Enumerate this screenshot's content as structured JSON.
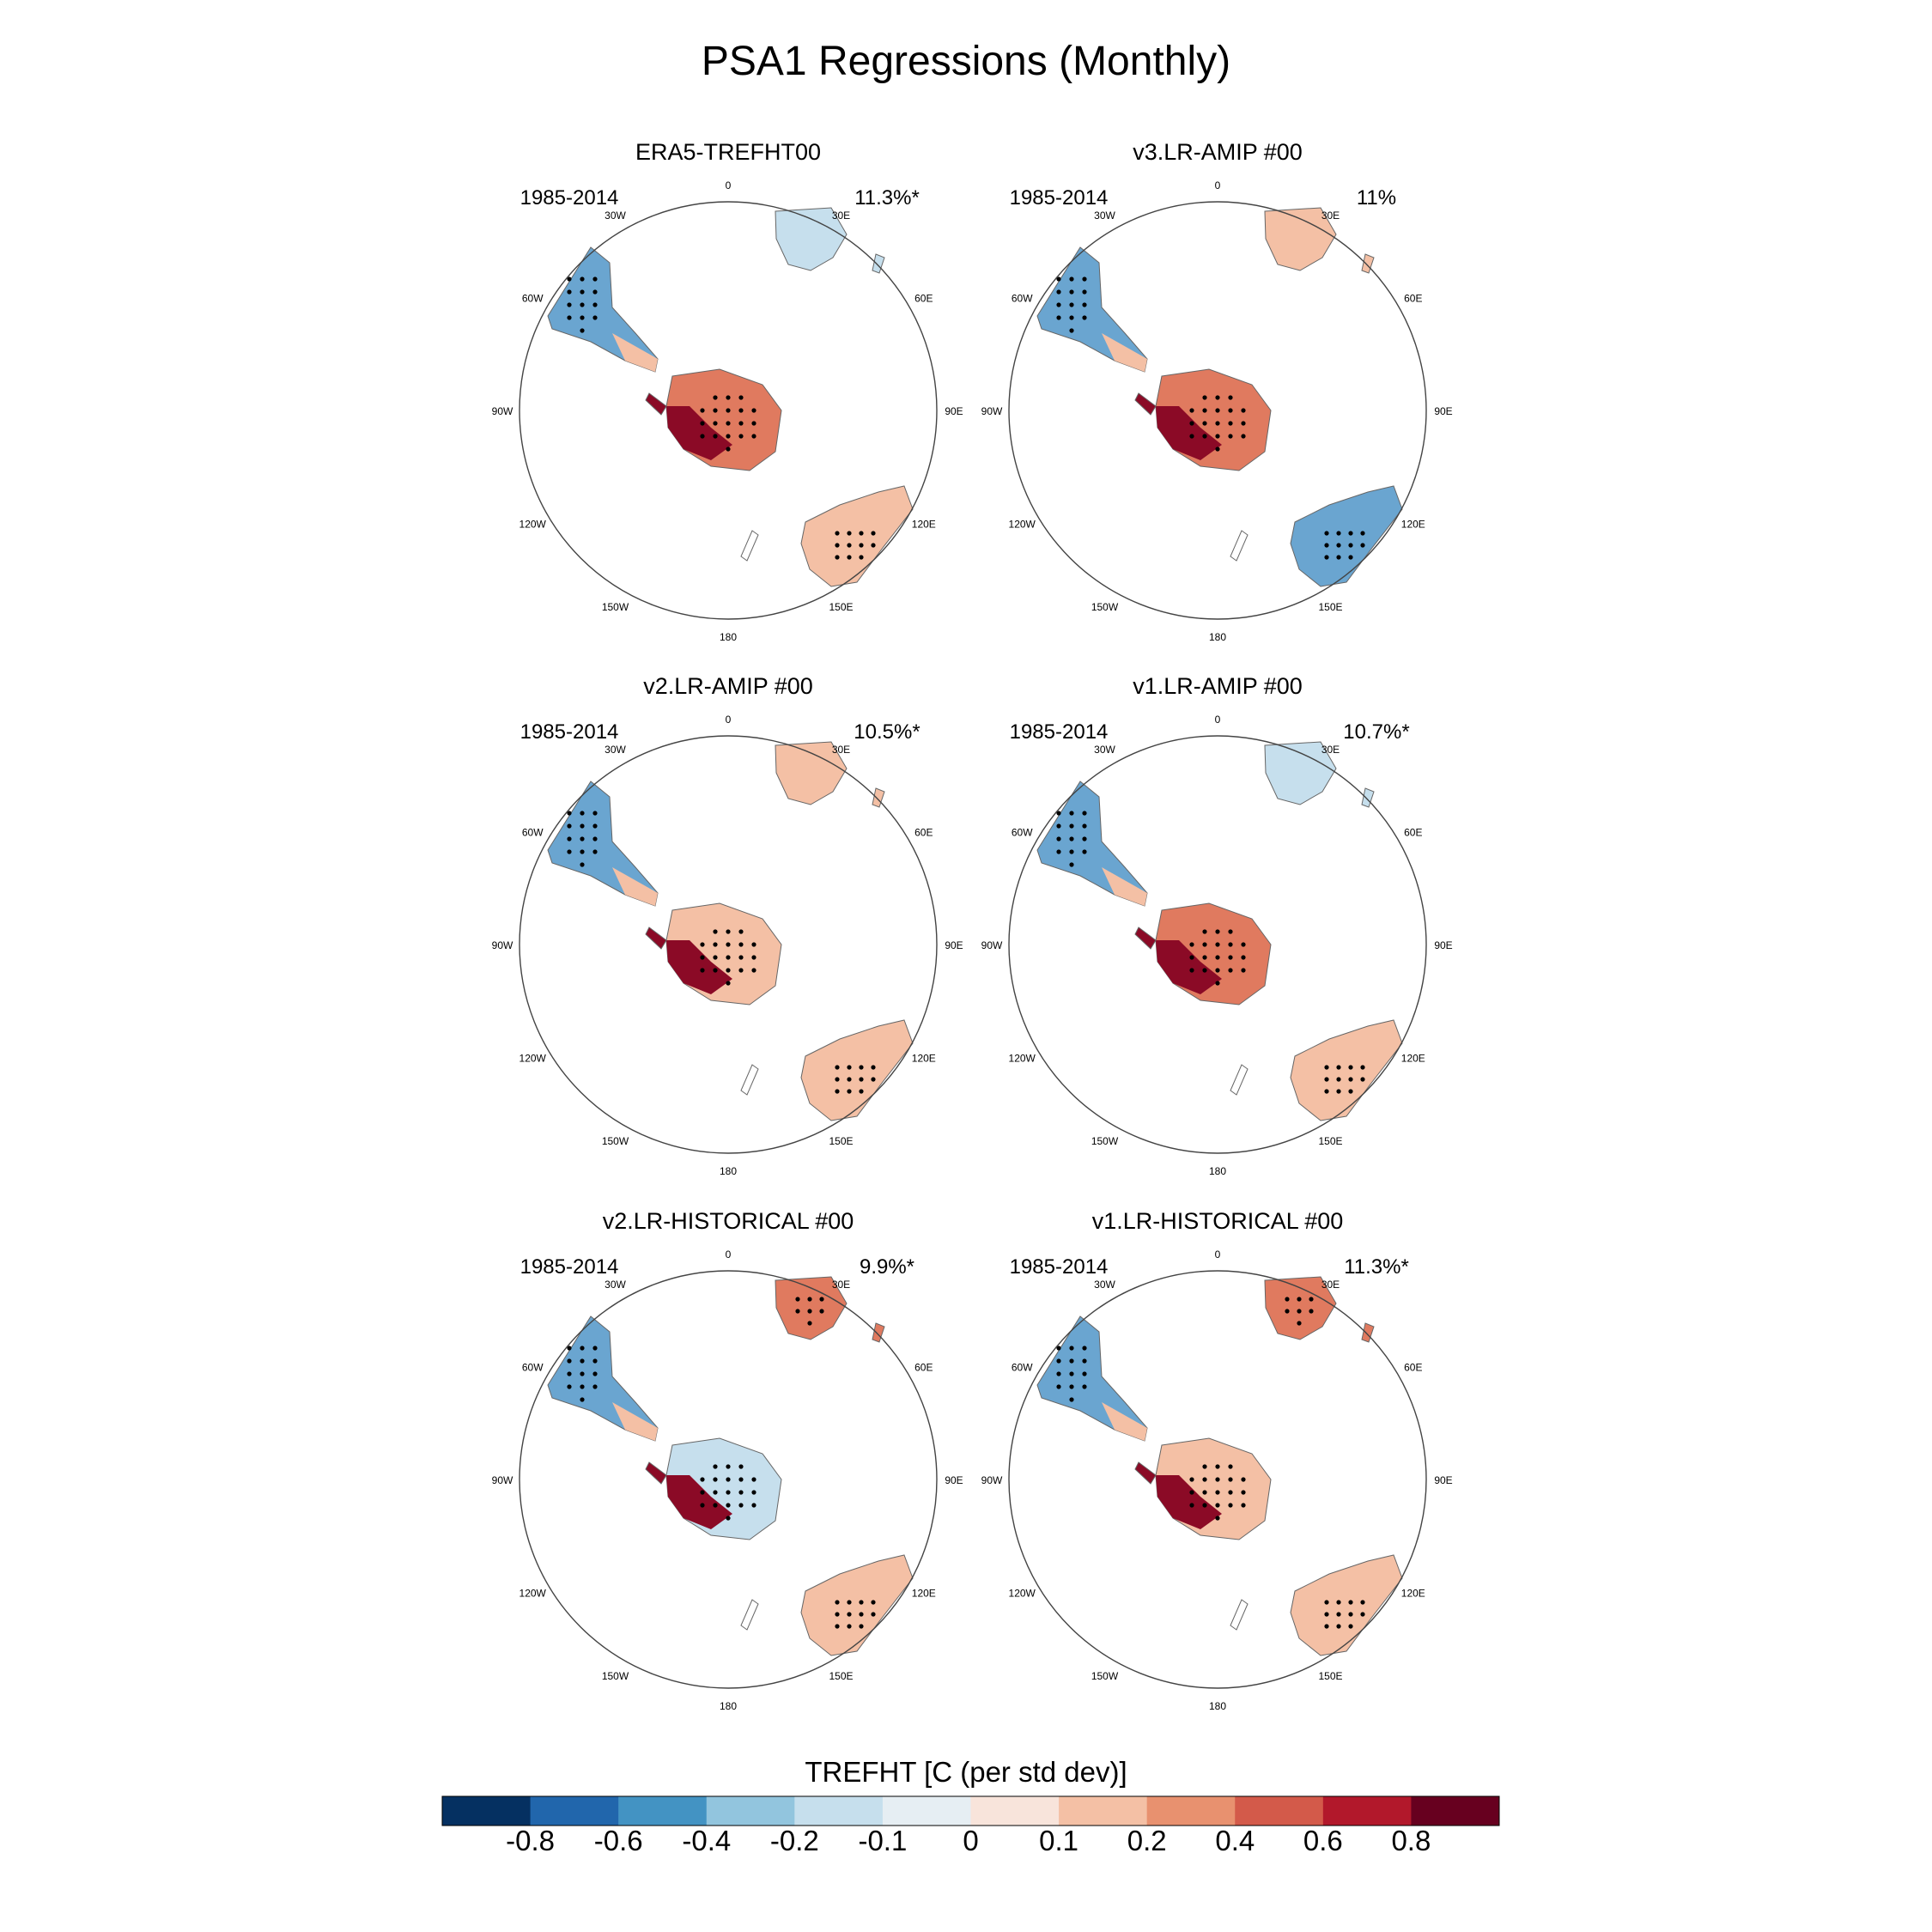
{
  "figure": {
    "title": "PSA1 Regressions (Monthly)",
    "lon_labels": [
      "0",
      "30E",
      "60E",
      "90E",
      "120E",
      "150E",
      "180",
      "150W",
      "120W",
      "90W",
      "60W",
      "30W"
    ]
  },
  "panels": [
    {
      "title": "ERA5-TREFHT00",
      "period": "1985-2014",
      "variance": "11.3%*",
      "anomaly_pattern": {
        "south_america": "blue",
        "antarctic_peninsula_region": "dark-red",
        "antarctica_interior": "red",
        "australia": "light-red",
        "africa": "light-blue"
      }
    },
    {
      "title": "v3.LR-AMIP  #00",
      "period": "1985-2014",
      "variance": "11%",
      "anomaly_pattern": {
        "south_america": "blue",
        "antarctic_peninsula_region": "dark-red",
        "antarctica_interior": "red",
        "australia": "blue",
        "africa": "light-red"
      }
    },
    {
      "title": "v2.LR-AMIP  #00",
      "period": "1985-2014",
      "variance": "10.5%*",
      "anomaly_pattern": {
        "south_america": "blue",
        "antarctic_peninsula_region": "dark-red",
        "antarctica_interior": "light-red",
        "australia": "light-red",
        "africa": "light-red"
      }
    },
    {
      "title": "v1.LR-AMIP  #00",
      "period": "1985-2014",
      "variance": "10.7%*",
      "anomaly_pattern": {
        "south_america": "blue",
        "antarctic_peninsula_region": "dark-red",
        "antarctica_interior": "red",
        "australia": "light-red",
        "africa": "light-blue"
      }
    },
    {
      "title": "v2.LR-HISTORICAL  #00",
      "period": "1985-2014",
      "variance": "9.9%*",
      "anomaly_pattern": {
        "south_america": "blue",
        "antarctic_peninsula_region": "dark-red",
        "antarctica_interior": "light-blue",
        "australia": "light-red",
        "africa": "red"
      }
    },
    {
      "title": "v1.LR-HISTORICAL  #00",
      "period": "1985-2014",
      "variance": "11.3%*",
      "anomaly_pattern": {
        "south_america": "blue",
        "antarctic_peninsula_region": "dark-red",
        "antarctica_interior": "light-red",
        "australia": "light-red",
        "africa": "red"
      }
    }
  ],
  "colorbar": {
    "title": "TREFHT [C (per std dev)]",
    "tick_labels": [
      "-0.8",
      "-0.6",
      "-0.4",
      "-0.2",
      "-0.1",
      "0",
      "0.1",
      "0.2",
      "0.4",
      "0.6",
      "0.8"
    ],
    "colors": [
      "#053061",
      "#2166ac",
      "#4393c3",
      "#92c5de",
      "#c6dfed",
      "#e6eef3",
      "#f8e4db",
      "#f4c0a5",
      "#e8916f",
      "#d35a4a",
      "#b2182b",
      "#67001f"
    ]
  }
}
